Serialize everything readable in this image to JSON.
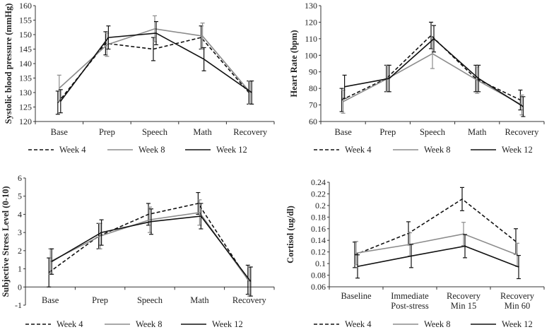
{
  "chart_data": [
    {
      "type": "line",
      "ylabel": "Systolic blood pressure (mmHg)",
      "categories": [
        "Base",
        "Prep",
        "Speech",
        "Math",
        "Recovery"
      ],
      "ylim": [
        120,
        160
      ],
      "yticks": [
        120,
        125,
        130,
        135,
        140,
        145,
        150,
        155,
        160
      ],
      "ytick_labels": [
        "120",
        "125",
        "130",
        "135",
        "140",
        "145",
        "150",
        "155",
        "160"
      ],
      "series": [
        {
          "name": "Week 4",
          "style": "dashed",
          "color": "#111111",
          "values": [
            126.5,
            147,
            145,
            149,
            130
          ],
          "err": [
            4,
            4,
            4,
            4,
            4
          ]
        },
        {
          "name": "Week 8",
          "style": "solid",
          "color": "#8c8c8c",
          "values": [
            131.5,
            146.5,
            152,
            149.5,
            130
          ],
          "err": [
            4.5,
            4,
            4.5,
            4.5,
            4
          ]
        },
        {
          "name": "Week 12",
          "style": "solid",
          "color": "#111111",
          "values": [
            127,
            149,
            150.5,
            141.5,
            130
          ],
          "err": [
            4,
            4,
            4,
            4,
            4
          ]
        }
      ]
    },
    {
      "type": "line",
      "ylabel": "Heart Rate (bpm)",
      "categories": [
        "Base",
        "Prep",
        "Speech",
        "Math",
        "Recovery"
      ],
      "ylim": [
        60,
        130
      ],
      "yticks": [
        60,
        70,
        80,
        90,
        100,
        110,
        120,
        130
      ],
      "ytick_labels": [
        "60",
        "70",
        "80",
        "90",
        "100",
        "110",
        "120",
        "130"
      ],
      "series": [
        {
          "name": "Week 4",
          "style": "dashed",
          "color": "#111111",
          "values": [
            73,
            86,
            112,
            86,
            73
          ],
          "err": [
            7,
            8,
            8,
            8,
            6
          ]
        },
        {
          "name": "Week 8",
          "style": "solid",
          "color": "#8c8c8c",
          "values": [
            72,
            86,
            101,
            85,
            70
          ],
          "err": [
            7,
            8,
            9,
            8,
            6
          ]
        },
        {
          "name": "Week 12",
          "style": "solid",
          "color": "#111111",
          "values": [
            81,
            86,
            110,
            86,
            69
          ],
          "err": [
            7,
            8,
            8,
            8,
            6
          ]
        }
      ]
    },
    {
      "type": "line",
      "ylabel": "Subjective Stress Level (0-10)",
      "categories": [
        "Base",
        "Prep",
        "Speech",
        "Math",
        "Recovery"
      ],
      "ylim": [
        -1,
        6
      ],
      "yticks": [
        -1,
        0,
        1,
        2,
        3,
        4,
        5,
        6
      ],
      "ytick_labels": [
        "-1",
        "0",
        "1",
        "2",
        "3",
        "4",
        "5",
        "6"
      ],
      "series": [
        {
          "name": "Week 4",
          "style": "dashed",
          "color": "#111111",
          "values": [
            0.8,
            2.8,
            4.0,
            4.6,
            0.4
          ],
          "err": [
            0.8,
            0.7,
            0.6,
            0.6,
            0.8
          ]
        },
        {
          "name": "Week 8",
          "style": "solid",
          "color": "#8c8c8c",
          "values": [
            1.4,
            2.8,
            3.7,
            4.1,
            0.3
          ],
          "err": [
            0.7,
            0.7,
            0.7,
            0.7,
            0.8
          ]
        },
        {
          "name": "Week 12",
          "style": "solid",
          "color": "#111111",
          "values": [
            1.4,
            3.0,
            3.6,
            3.9,
            0.3
          ],
          "err": [
            0.7,
            0.7,
            0.7,
            0.7,
            0.8
          ]
        }
      ]
    },
    {
      "type": "line",
      "ylabel": "Cortisol (ug/dl)",
      "categories": [
        "Baseline",
        "Immediate\nPost-stress",
        "Recovery\nMin 15",
        "Recovery\nMin 60"
      ],
      "ylim": [
        0.06,
        0.24
      ],
      "yticks": [
        0.06,
        0.08,
        0.1,
        0.12,
        0.14,
        0.16,
        0.18,
        0.2,
        0.22,
        0.24
      ],
      "ytick_labels": [
        "0.06",
        "0.08",
        "0.1",
        "0.12",
        "0.14",
        "0.16",
        "0.18",
        "0.2",
        "0.22",
        "0.24"
      ],
      "series": [
        {
          "name": "Week 4",
          "style": "dashed",
          "color": "#111111",
          "values": [
            0.115,
            0.152,
            0.211,
            0.138
          ],
          "err": [
            0.022,
            0.02,
            0.02,
            0.022
          ]
        },
        {
          "name": "Week 8",
          "style": "solid",
          "color": "#8c8c8c",
          "values": [
            0.118,
            0.133,
            0.151,
            0.115
          ],
          "err": [
            0.02,
            0.02,
            0.02,
            0.02
          ]
        },
        {
          "name": "Week 12",
          "style": "solid",
          "color": "#111111",
          "values": [
            0.095,
            0.113,
            0.13,
            0.094
          ],
          "err": [
            0.02,
            0.02,
            0.02,
            0.02
          ]
        }
      ]
    }
  ]
}
